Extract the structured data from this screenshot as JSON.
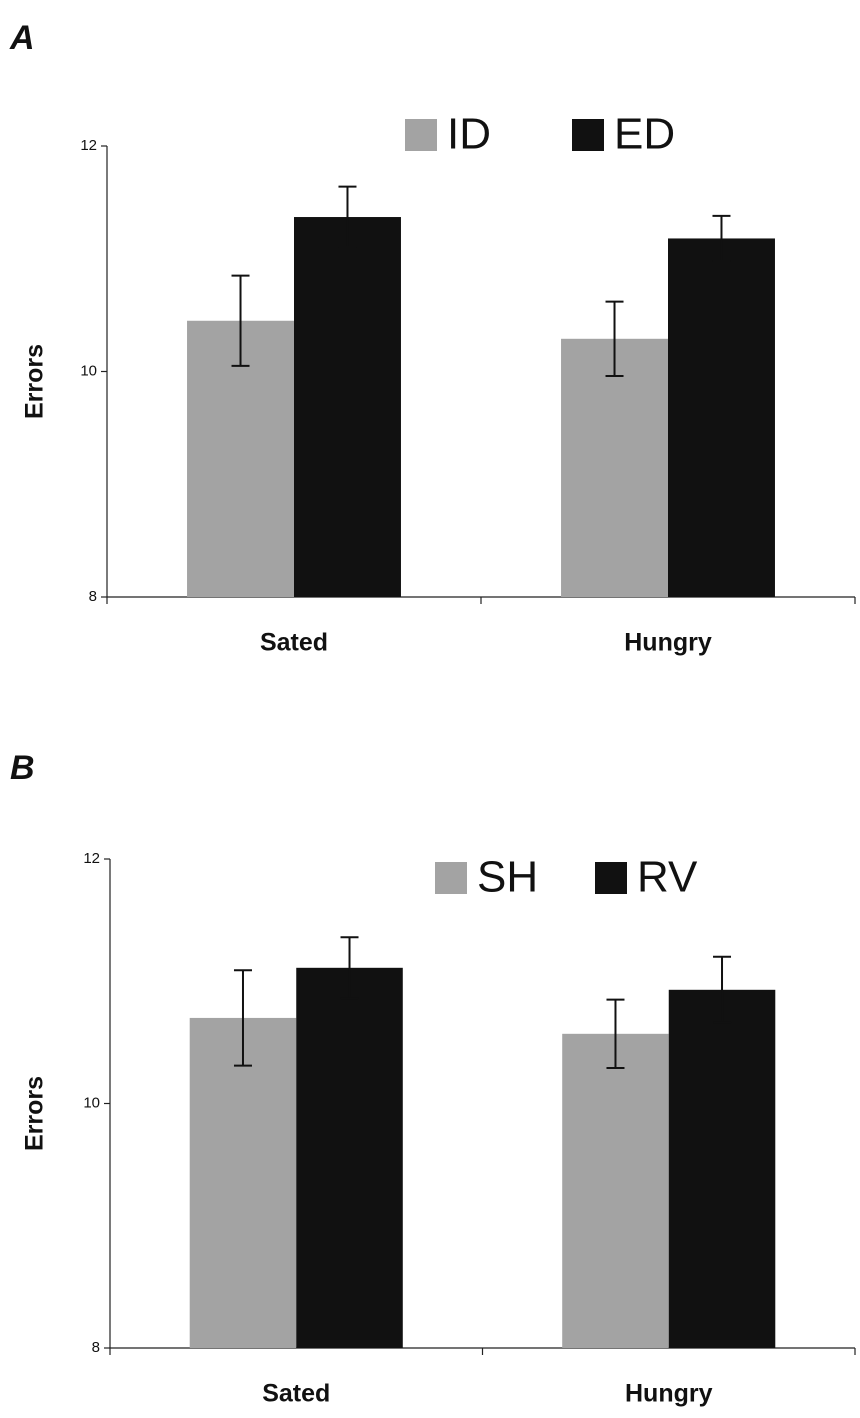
{
  "chart_data": [
    {
      "type": "bar",
      "panel": "A",
      "ylabel": "Errors",
      "categories": [
        "Sated",
        "Hungry"
      ],
      "series": [
        {
          "name": "ID",
          "color": "#a3a3a3",
          "values": [
            10.45,
            10.29
          ],
          "errors": [
            0.4,
            0.33
          ]
        },
        {
          "name": "ED",
          "color": "#111111",
          "values": [
            11.37,
            11.18
          ],
          "errors": [
            0.27,
            0.2
          ]
        }
      ],
      "ylim": [
        8,
        12
      ],
      "yticks": [
        8,
        10,
        12
      ]
    },
    {
      "type": "bar",
      "panel": "B",
      "ylabel": "Errors",
      "categories": [
        "Sated",
        "Hungry"
      ],
      "series": [
        {
          "name": "SH",
          "color": "#a3a3a3",
          "values": [
            10.7,
            10.57
          ],
          "errors": [
            0.39,
            0.28
          ]
        },
        {
          "name": "RV",
          "color": "#111111",
          "values": [
            11.11,
            10.93
          ],
          "errors": [
            0.25,
            0.27
          ]
        }
      ],
      "ylim": [
        8,
        12
      ],
      "yticks": [
        8,
        10,
        12
      ]
    }
  ]
}
